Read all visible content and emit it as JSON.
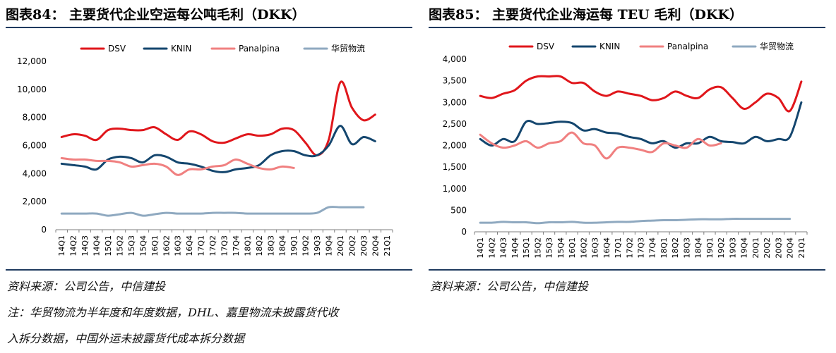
{
  "charts": [
    {
      "title": "图表84： 主要货代企业空运每公吨毛利（DKK）",
      "source": "资料来源：公司公告，中信建投",
      "notes": [
        "注：华贸物流为半年度和年度数据，DHL、嘉里物流未披露货代收",
        "入拆分数据，中国外运未披露货代成本拆分数据"
      ]
    },
    {
      "title": "图表85： 主要货代企业海运每 TEU 毛利（DKK）",
      "source": "资料来源：公司公告，中信建投",
      "notes": []
    }
  ],
  "chart_data": [
    {
      "type": "line",
      "title": "主要货代企业空运每公吨毛利（DKK）",
      "ylim": [
        0,
        12000
      ],
      "yticks": [
        0,
        2000,
        4000,
        6000,
        8000,
        10000,
        12000
      ],
      "ytick_labels": [
        "0",
        "2,000",
        "4,000",
        "6,000",
        "8,000",
        "10,000",
        "12,000"
      ],
      "grid": false,
      "legend": "top",
      "categories": [
        "14Q1",
        "14Q2",
        "14Q3",
        "14Q4",
        "15Q1",
        "15Q2",
        "15Q3",
        "15Q4",
        "16Q1",
        "16Q2",
        "16Q3",
        "16Q4",
        "17Q1",
        "17Q2",
        "17Q3",
        "17Q4",
        "18Q1",
        "18Q2",
        "18Q3",
        "18Q4",
        "19Q1",
        "19Q2",
        "19Q3",
        "19Q4",
        "20Q1",
        "20Q2",
        "20Q3",
        "20Q4",
        "21Q1"
      ],
      "series": [
        {
          "name": "DSV",
          "color": "#e0161b",
          "values": [
            6600,
            6800,
            6700,
            6400,
            7100,
            7200,
            7100,
            7100,
            7300,
            6800,
            6400,
            7000,
            6800,
            6300,
            6200,
            6500,
            6800,
            6700,
            6800,
            7200,
            7100,
            6200,
            5300,
            6400,
            10500,
            8700,
            7800,
            8200,
            null
          ]
        },
        {
          "name": "KNIN",
          "color": "#14466e",
          "values": [
            4700,
            4600,
            4500,
            4300,
            5000,
            5200,
            5100,
            4800,
            5300,
            5200,
            4800,
            4700,
            4500,
            4200,
            4100,
            4300,
            4400,
            4600,
            5300,
            5600,
            5600,
            5300,
            5300,
            6000,
            7400,
            6100,
            6600,
            6300,
            null
          ]
        },
        {
          "name": "Panalpina",
          "color": "#f08080",
          "values": [
            5100,
            5000,
            5000,
            4900,
            4900,
            4800,
            4500,
            4600,
            4700,
            4500,
            3900,
            4300,
            4300,
            4500,
            4600,
            5000,
            4700,
            4400,
            4300,
            4500,
            4400,
            null,
            null,
            null,
            null,
            null,
            null,
            null,
            null
          ]
        },
        {
          "name": "华贸物流",
          "color": "#8fa9c0",
          "values": [
            1150,
            1150,
            1150,
            1150,
            1000,
            1100,
            1200,
            1000,
            1100,
            1200,
            1150,
            1150,
            1150,
            1200,
            1200,
            1200,
            1150,
            1150,
            1150,
            1150,
            1150,
            1150,
            1200,
            1600,
            1600,
            1600,
            1600,
            null,
            null
          ]
        }
      ]
    },
    {
      "type": "line",
      "title": "主要货代企业海运每 TEU 毛利（DKK）",
      "ylim": [
        0,
        4000
      ],
      "yticks": [
        0,
        500,
        1000,
        1500,
        2000,
        2500,
        3000,
        3500,
        4000
      ],
      "ytick_labels": [
        "0",
        "500",
        "1,000",
        "1,500",
        "2,000",
        "2,500",
        "3,000",
        "3,500",
        "4,000"
      ],
      "grid": false,
      "legend": "top",
      "categories": [
        "14Q1",
        "14Q2",
        "14Q3",
        "14Q4",
        "15Q1",
        "15Q2",
        "15Q3",
        "15Q4",
        "16Q1",
        "16Q2",
        "16Q3",
        "16Q4",
        "17Q1",
        "17Q2",
        "17Q3",
        "17Q4",
        "18Q1",
        "18Q2",
        "18Q3",
        "18Q4",
        "19Q1",
        "19Q2",
        "19Q3",
        "19Q4",
        "20Q1",
        "20Q2",
        "20Q3",
        "20Q4",
        "21Q1"
      ],
      "series": [
        {
          "name": "DSV",
          "color": "#e0161b",
          "values": [
            3150,
            3100,
            3200,
            3280,
            3500,
            3600,
            3600,
            3600,
            3450,
            3450,
            3250,
            3150,
            3250,
            3200,
            3150,
            3050,
            3100,
            3250,
            3150,
            3100,
            3300,
            3350,
            3100,
            2850,
            3000,
            3200,
            3100,
            2800,
            3480
          ]
        },
        {
          "name": "KNIN",
          "color": "#14466e",
          "values": [
            2150,
            2000,
            2150,
            2100,
            2550,
            2500,
            2520,
            2550,
            2520,
            2350,
            2380,
            2300,
            2280,
            2200,
            2150,
            2050,
            2100,
            1950,
            2050,
            2050,
            2200,
            2100,
            2080,
            2050,
            2200,
            2100,
            2150,
            2200,
            3000
          ]
        },
        {
          "name": "Panalpina",
          "color": "#f08080",
          "values": [
            2250,
            2050,
            1950,
            2000,
            2100,
            1950,
            2050,
            2100,
            2300,
            2050,
            2000,
            1700,
            1950,
            1950,
            1900,
            1850,
            2050,
            2000,
            1950,
            2150,
            2000,
            2050,
            null,
            null,
            null,
            null,
            null,
            null,
            null
          ]
        },
        {
          "name": "华贸物流",
          "color": "#8fa9c0",
          "values": [
            210,
            210,
            230,
            220,
            220,
            200,
            220,
            220,
            230,
            210,
            210,
            220,
            230,
            230,
            250,
            260,
            270,
            270,
            280,
            290,
            290,
            290,
            300,
            300,
            300,
            300,
            300,
            300,
            null
          ]
        }
      ]
    }
  ]
}
